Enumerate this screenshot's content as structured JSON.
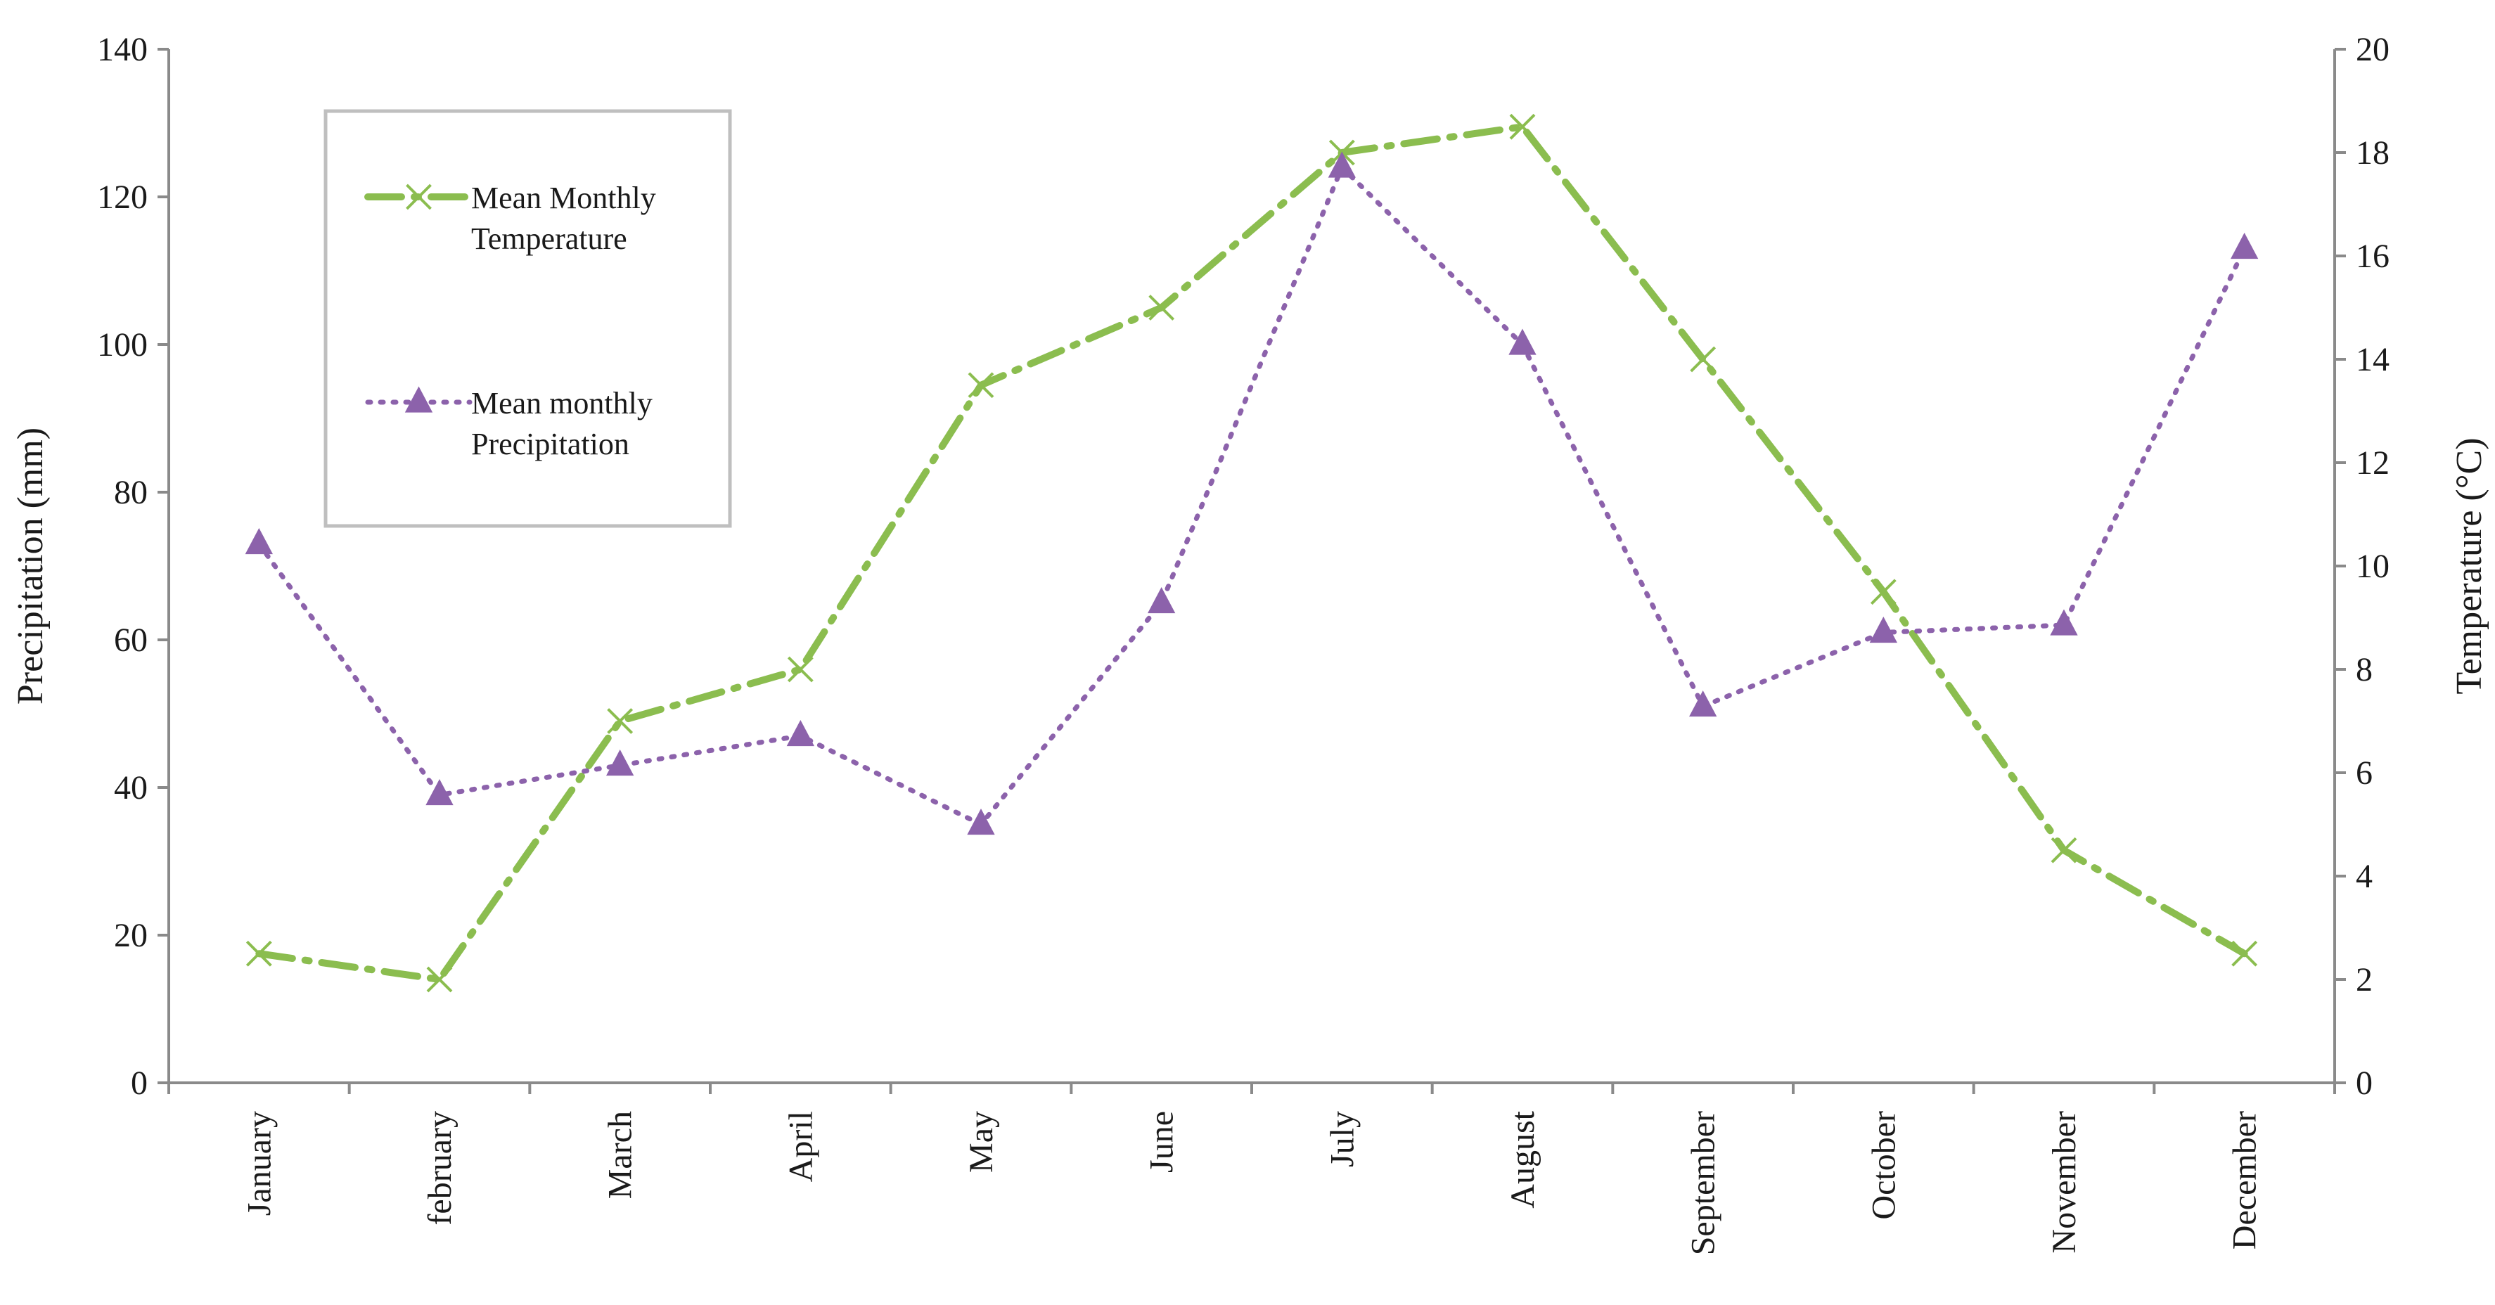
{
  "chart_data": {
    "type": "line",
    "categories": [
      "January",
      "february",
      "March",
      "April",
      "May",
      "June",
      "July",
      "August",
      "September",
      "October",
      "November",
      "December"
    ],
    "series": [
      {
        "name": "Mean Monthly Temperature",
        "legend_lines": [
          "Mean Monthly",
          "Temperature"
        ],
        "axis": "right",
        "color": "#8bbd4f",
        "marker": "x",
        "values": [
          2.5,
          2.0,
          7.0,
          8.0,
          13.5,
          15.0,
          18.0,
          18.5,
          14.0,
          9.5,
          4.5,
          2.5
        ]
      },
      {
        "name": "Mean monthly Precipitation",
        "legend_lines": [
          "Mean monthly",
          "Precipitation"
        ],
        "axis": "left",
        "color": "#8c62ab",
        "marker": "triangle",
        "values": [
          73,
          39,
          43,
          47,
          35,
          65,
          124,
          100,
          51,
          61,
          62,
          113
        ]
      }
    ],
    "ylabel": "Precipitation (mm)",
    "ylabel_right": "Temperature (°C)",
    "ylim": [
      0,
      140
    ],
    "ylim_right": [
      0,
      20
    ],
    "yticks": [
      "0",
      "20",
      "40",
      "60",
      "80",
      "100",
      "120",
      "140"
    ],
    "yticks_right": [
      "0",
      "2",
      "4",
      "6",
      "8",
      "10",
      "12",
      "14",
      "16",
      "18",
      "20"
    ],
    "grid": false,
    "legend_position": "top-left"
  }
}
